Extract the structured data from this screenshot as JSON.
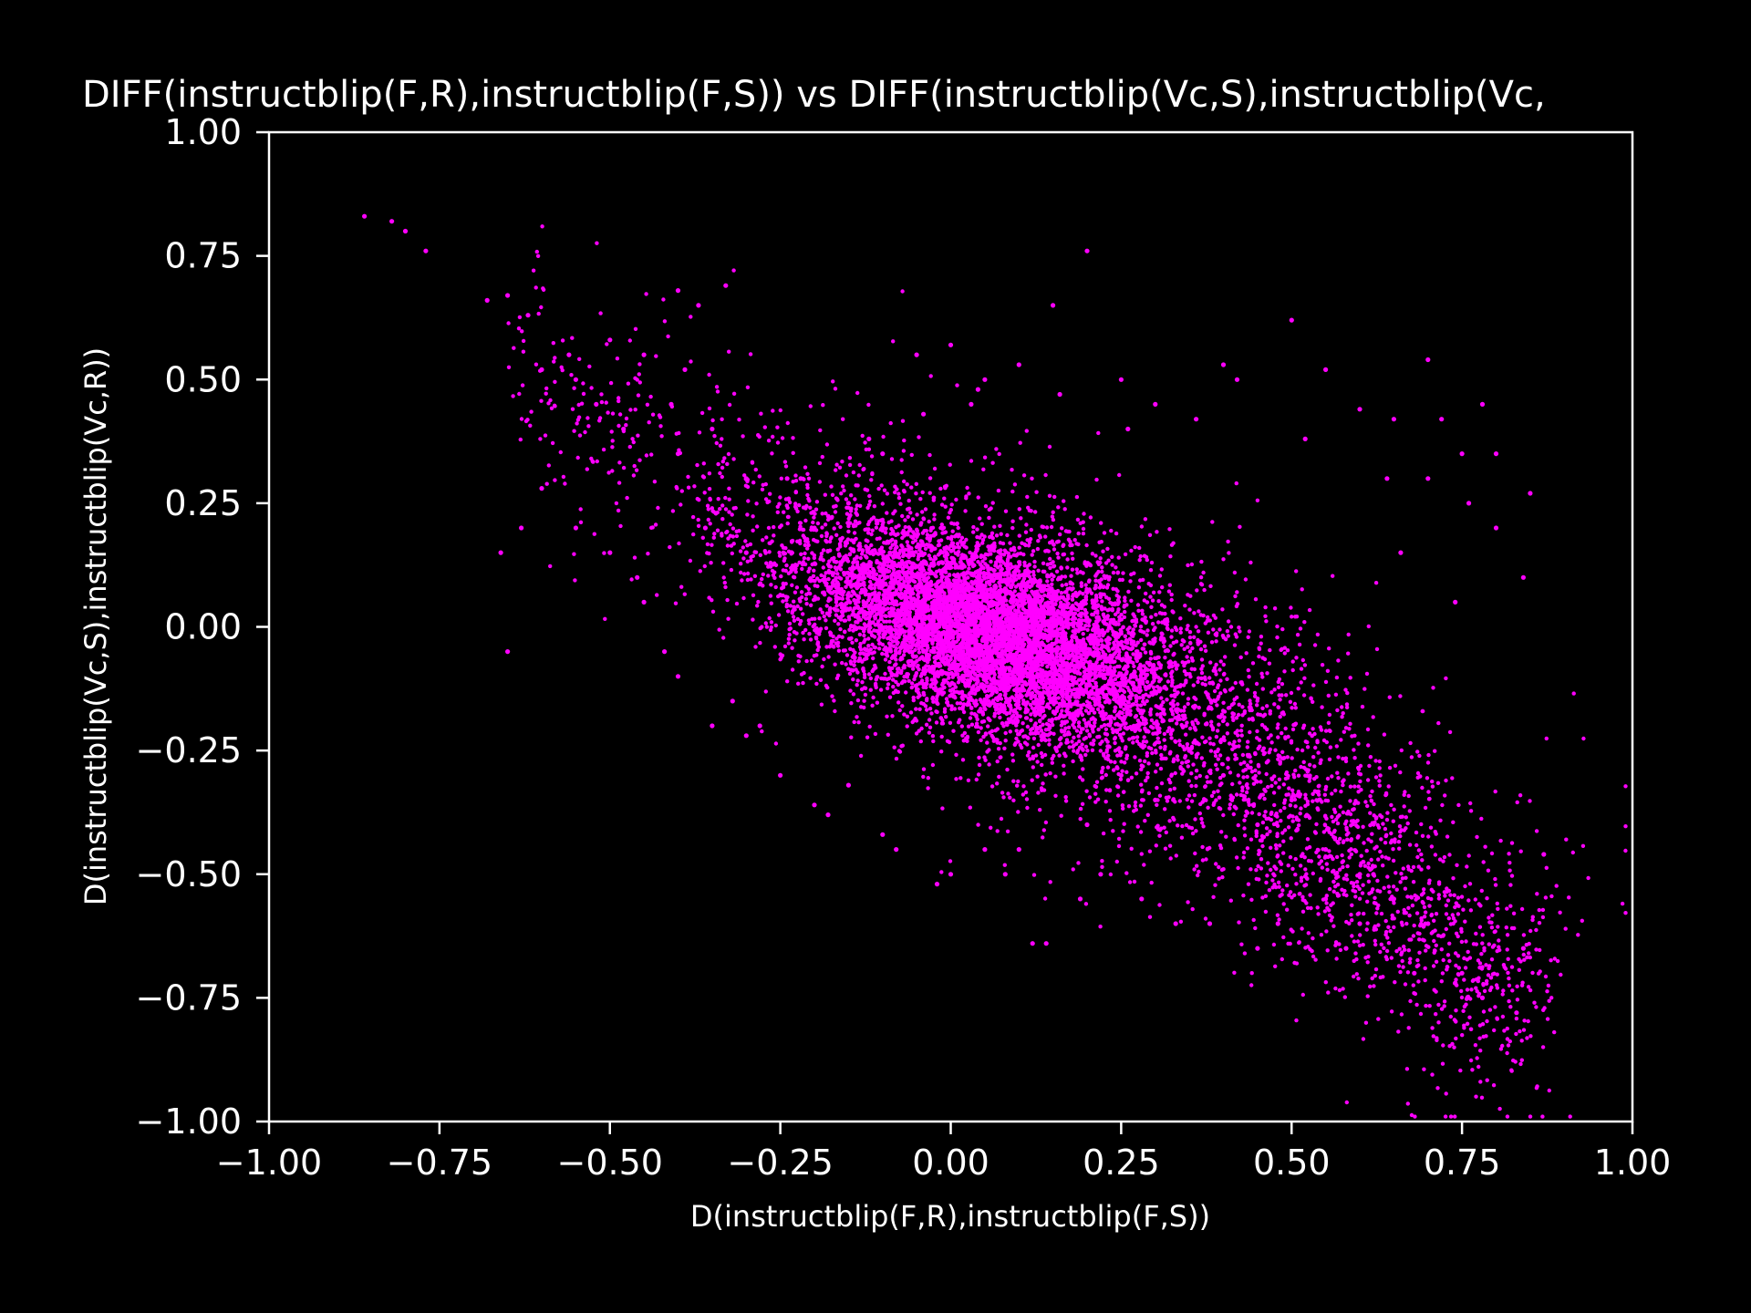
{
  "colors": {
    "background": "#000000",
    "foreground": "#ffffff",
    "points": "#ff00ff"
  },
  "chart_data": {
    "type": "scatter",
    "title": "DIFF(instructblip(F,R),instructblip(F,S)) vs DIFF(instructblip(Vc,S),instructblip(Vc,",
    "xlabel": "D(instructblip(F,R),instructblip(F,S))",
    "ylabel": "D(instructblip(Vc,S),instructblip(Vc,R))",
    "xlim": [
      -1.0,
      1.0
    ],
    "ylim": [
      -1.0,
      1.0
    ],
    "xticks": [
      -1.0,
      -0.75,
      -0.5,
      -0.25,
      0.0,
      0.25,
      0.5,
      0.75,
      1.0
    ],
    "yticks": [
      -1.0,
      -0.75,
      -0.5,
      -0.25,
      0.0,
      0.25,
      0.5,
      0.75,
      1.0
    ],
    "xtick_labels": [
      "−1.00",
      "−0.75",
      "−0.50",
      "−0.25",
      "0.00",
      "0.25",
      "0.50",
      "0.75",
      "1.00"
    ],
    "ytick_labels": [
      "−1.00",
      "−0.75",
      "−0.50",
      "−0.25",
      "0.00",
      "0.25",
      "0.50",
      "0.75",
      "1.00"
    ],
    "grid": false,
    "legend": "none",
    "series": [
      {
        "x": [
          -0.86,
          -0.82,
          -0.8,
          -0.77,
          -0.68,
          -0.65,
          -0.62,
          -0.6,
          -0.56,
          -0.55,
          -0.52,
          -0.5,
          -0.48,
          -0.45,
          -0.41,
          -0.4,
          -0.39,
          -0.37,
          -0.33,
          -0.4,
          -0.35,
          -0.3,
          -0.3,
          -0.2,
          -0.22,
          -0.15,
          -0.1,
          -0.05,
          0.0,
          0.03,
          0.05,
          0.1,
          0.15,
          0.2,
          0.25,
          0.3,
          0.4,
          0.42,
          0.5,
          0.55,
          0.6,
          0.65,
          0.7,
          0.72,
          0.75,
          0.78,
          0.8,
          0.85,
          0.87,
          0.84,
          0.75,
          0.7,
          0.65,
          0.6,
          0.55,
          0.5,
          0.45,
          0.4,
          0.35,
          0.3,
          0.25,
          0.2,
          0.1,
          0.05,
          0.0,
          -0.1,
          -0.15,
          -0.2,
          -0.25,
          -0.3,
          -0.35,
          -0.4,
          -0.45,
          -0.5,
          -0.55,
          -0.6,
          -0.63,
          -0.66,
          -0.65,
          0.12,
          0.14,
          0.19,
          0.33,
          0.45,
          0.55,
          0.6,
          0.68,
          0.74,
          0.78,
          0.83,
          0.62,
          0.58,
          0.48,
          0.38,
          0.28,
          0.22,
          0.08,
          -0.02,
          -0.08,
          -0.18,
          -0.28,
          -0.32,
          -0.42,
          0.52,
          0.64,
          0.7,
          0.76,
          0.8,
          0.84,
          0.74,
          0.66,
          0.36,
          0.26,
          0.16,
          0.04,
          -0.04,
          -0.12,
          -0.24,
          -0.36,
          -0.46
        ],
        "y": [
          0.83,
          0.82,
          0.8,
          0.76,
          0.66,
          0.67,
          0.63,
          0.52,
          0.55,
          0.5,
          0.45,
          0.58,
          0.4,
          0.55,
          0.45,
          0.68,
          0.52,
          0.65,
          0.69,
          0.35,
          0.4,
          0.3,
          0.15,
          0.2,
          0.3,
          0.25,
          0.35,
          0.55,
          0.57,
          0.45,
          0.5,
          0.53,
          0.65,
          0.76,
          0.5,
          0.45,
          0.53,
          0.5,
          0.62,
          0.52,
          0.44,
          0.42,
          0.54,
          0.42,
          0.35,
          0.45,
          0.2,
          0.27,
          -0.46,
          -0.65,
          -0.7,
          -0.6,
          -0.55,
          -0.5,
          -0.45,
          -0.35,
          -0.4,
          -0.3,
          -0.25,
          -0.35,
          -0.3,
          -0.4,
          -0.45,
          -0.45,
          -0.5,
          -0.42,
          -0.32,
          -0.36,
          -0.3,
          -0.22,
          -0.2,
          -0.1,
          0.05,
          0.15,
          0.2,
          0.28,
          0.2,
          0.15,
          -0.05,
          -0.64,
          -0.64,
          -0.55,
          -0.6,
          -0.65,
          -0.55,
          -0.6,
          -0.7,
          -0.72,
          -0.75,
          -0.78,
          -0.5,
          -0.65,
          -0.6,
          -0.6,
          -0.55,
          -0.5,
          -0.5,
          -0.52,
          -0.45,
          -0.38,
          -0.2,
          -0.15,
          -0.05,
          0.38,
          0.3,
          0.3,
          0.25,
          0.35,
          0.1,
          0.05,
          0.15,
          0.42,
          0.4,
          0.47,
          0.48,
          0.43,
          0.38,
          0.3,
          0.2,
          0.1
        ],
        "note": ""
      }
    ]
  }
}
